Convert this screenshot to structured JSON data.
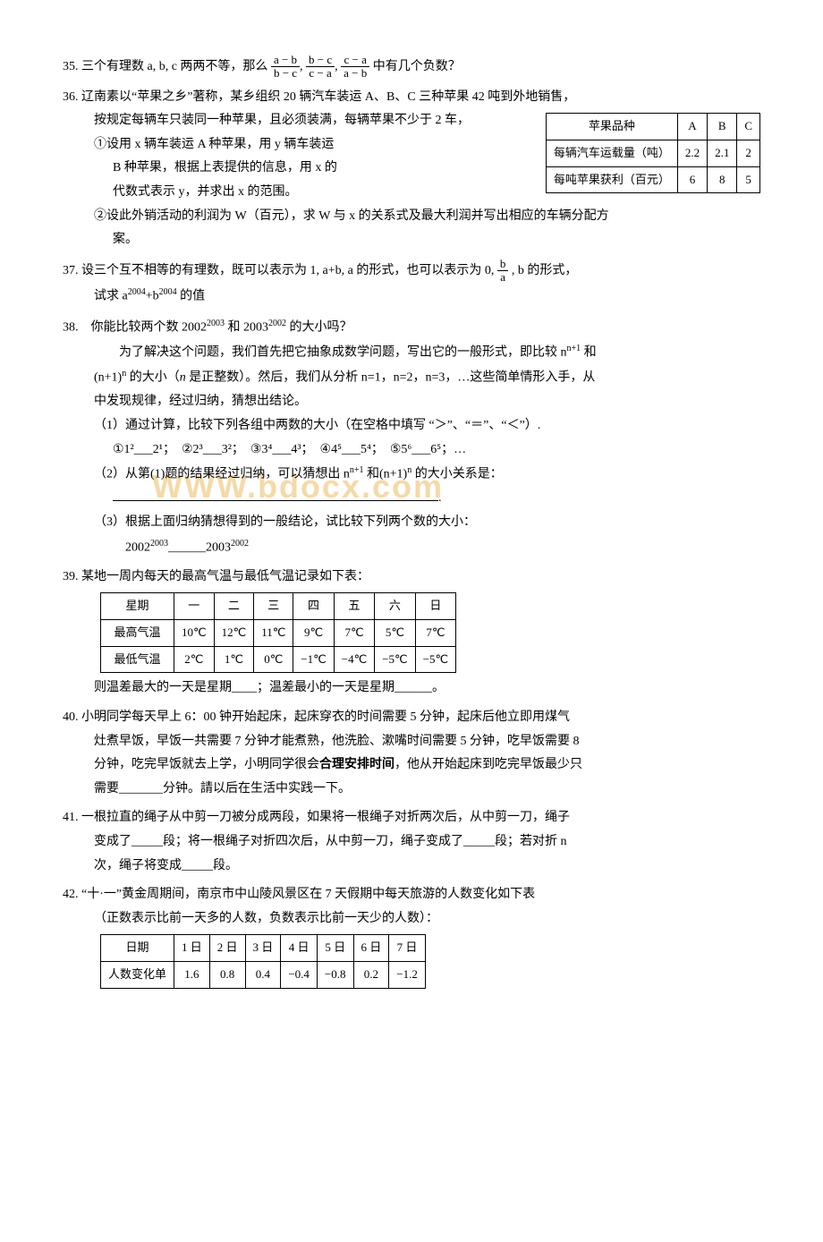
{
  "p35": {
    "text1": "35. 三个有理数 a, b, c 两两不等，那么 ",
    "frac1_num": "a − b",
    "frac1_den": "b − c",
    "frac2_num": "b − c",
    "frac2_den": "c − a",
    "frac3_num": "c − a",
    "frac3_den": "a − b",
    "text2": " 中有几个负数？"
  },
  "p36": {
    "line1": "36. 辽南素以“苹果之乡”著称，某乡组织 20 辆汽车装运 A、B、C 三种苹果 42 吨到外地销售，",
    "line2": "按规定每辆车只装同一种苹果，且必须装满，每辆苹果不少于 2 车，",
    "sub1a": "①设用 x 辆车装运 A 种苹果，用 y 辆车装运",
    "sub1b": "B 种苹果，根据上表提供的信息，用 x 的",
    "sub1c": "代数式表示 y，并求出 x 的范围。",
    "sub2a": "②设此外销活动的利润为 W（百元），求 W 与 x 的关系式及最大利润并写出相应的车辆分配方",
    "sub2b": "案。",
    "table": {
      "r1": [
        "苹果品种",
        "A",
        "B",
        "C"
      ],
      "r2": [
        "每辆汽车运载量（吨）",
        "2.2",
        "2.1",
        "2"
      ],
      "r3": [
        "每吨苹果获利（百元）",
        "6",
        "8",
        "5"
      ]
    }
  },
  "p37": {
    "text1": "37. 设三个互不相等的有理数，既可以表示为 1, a+b, a 的形式，也可以表示为 0,  ",
    "frac_num": "b",
    "frac_den": "a",
    "text2": ", b 的形式，",
    "line2": "试求 a",
    "exp1": "2004",
    "mid": "+b",
    "exp2": "2004",
    "line2end": " 的值"
  },
  "p38": {
    "q": "38.　你能比较两个数 2002",
    "q_e1": "2003",
    "q_mid": " 和 2003",
    "q_e2": "2002",
    "q_end": " 的大小吗？",
    "p1": "　　为了解决这个问题，我们首先把它抽象成数学问题，写出它的一般形式，即比较 n",
    "p1e": "n+1",
    "p1mid": " 和",
    "p2a": "(n+1)",
    "p2e": "n",
    "p2b": " 的大小（",
    "p2i": "n",
    "p2c": " 是正整数）。然后，我们从分析 n=1，n=2，n=3，…这些简单情形入手，从",
    "p3": "中发现规律，经过归纳，猜想出结论。",
    "s1": "（1）通过计算，比较下列各组中两数的大小（在空格中填写 “＞”、“＝”、“＜”）.",
    "s1_items": "①1²___2¹；　②2³___3²；　③3⁴___4³；　④4⁵___5⁴；　⑤5⁶___6⁵；…",
    "s2a": "（2）从第(1)题的结果经过归纳，可以猜想出 n",
    "s2e1": "n+1",
    "s2b": " 和(n+1)",
    "s2e2": "n",
    "s2c": " 的大小关系是：",
    "s3": "（3）根据上面归纳猜想得到的一般结论，试比较下列两个数的大小：",
    "s3_line": "2002",
    "s3_e1": "2003",
    "s3_mid": "______2003",
    "s3_e2": "2002"
  },
  "p39": {
    "head": "39. 某地一周内每天的最高气温与最低气温记录如下表：",
    "table": {
      "r1": [
        "星期",
        "一",
        "二",
        "三",
        "四",
        "五",
        "六",
        "日"
      ],
      "r2": [
        "最高气温",
        "10℃",
        "12℃",
        "11℃",
        "9℃",
        "7℃",
        "5℃",
        "7℃"
      ],
      "r3": [
        "最低气温",
        "2℃",
        "1℃",
        "0℃",
        "−1℃",
        "−4℃",
        "−5℃",
        "−5℃"
      ]
    },
    "tail": "则温差最大的一天是星期____；温差最小的一天是星期______。"
  },
  "p40": {
    "l1": "40. 小明同学每天早上 6：00 钟开始起床，起床穿衣的时间需要 5 分钟，起床后他立即用煤气",
    "l2": "灶煮早饭，早饭一共需要 7 分钟才能煮熟，他洗脸、漱嘴时间需要 5 分钟，吃早饭需要 8",
    "l3a": "分钟，吃完早饭就去上学，小明同学很会",
    "l3b": "合理安排时间",
    "l3c": "，他从开始起床到吃完早饭最少只",
    "l4": "需要_______分钟。請以后在生活中实践一下。"
  },
  "p41": {
    "l1": "41. 一根拉直的绳子从中剪一刀被分成两段，如果将一根绳子对折两次后，从中剪一刀，绳子",
    "l2": "变成了_____段；将一根绳子对折四次后，从中剪一刀，绳子变成了_____段；若对折 n",
    "l3": "次，绳子将变成_____段。"
  },
  "p42": {
    "l1": "42. “十·一”黄金周期间，南京市中山陵风景区在 7 天假期中每天旅游的人数变化如下表",
    "l2": "（正数表示比前一天多的人数，负数表示比前一天少的人数）：",
    "table": {
      "r1": [
        "日期",
        "1 日",
        "2 日",
        "3 日",
        "4 日",
        "5 日",
        "6 日",
        "7 日"
      ],
      "r2": [
        "人数变化单",
        "1.6",
        "0.8",
        "0.4",
        "−0.4",
        "−0.8",
        "0.2",
        "−1.2"
      ]
    }
  }
}
